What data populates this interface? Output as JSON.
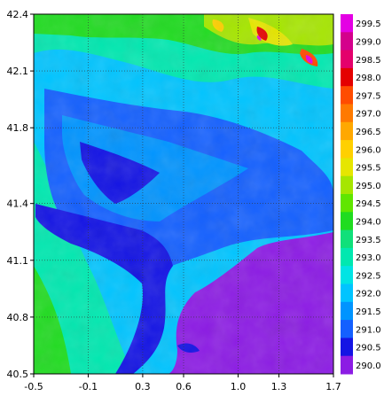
{
  "map": {
    "x_ticks": [
      "-0.5",
      "-0.1",
      "0.3",
      "0.6",
      "1.0",
      "1.3",
      "1.7"
    ],
    "x_values": [
      -0.5,
      -0.1,
      0.3,
      0.6,
      1.0,
      1.3,
      1.7
    ],
    "y_ticks": [
      "42.4",
      "42.1",
      "41.8",
      "41.4",
      "41.1",
      "40.8",
      "40.5"
    ],
    "y_values": [
      42.4,
      42.1,
      41.8,
      41.4,
      41.1,
      40.8,
      40.5
    ],
    "xlim": [
      -0.5,
      1.7
    ],
    "ylim": [
      40.5,
      42.4
    ],
    "grid": "dotted",
    "colorbar": {
      "labels": [
        "299.5",
        "299.0",
        "298.5",
        "298.0",
        "297.5",
        "297.0",
        "296.5",
        "296.0",
        "295.5",
        "295.0",
        "294.5",
        "294.0",
        "293.5",
        "293.0",
        "292.5",
        "292.0",
        "291.5",
        "291.0",
        "290.5",
        "290.0"
      ],
      "colors": [
        "#e400e4",
        "#d4008c",
        "#e4006c",
        "#e40000",
        "#ff4c00",
        "#ff7a00",
        "#ffa800",
        "#ffd000",
        "#e6e600",
        "#a6e600",
        "#60e600",
        "#20dc20",
        "#10e07a",
        "#00e8b0",
        "#00e4e4",
        "#00c4ff",
        "#0094ff",
        "#1460ff",
        "#1414e4",
        "#8c1ce4"
      ]
    }
  }
}
